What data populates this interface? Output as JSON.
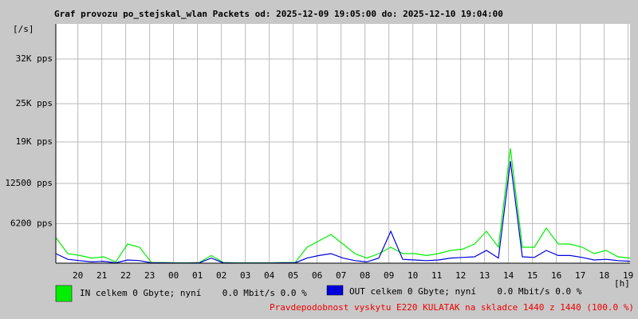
{
  "chart_data": {
    "type": "line",
    "title": "Graf provozu po_stejskal_wlan Packets od: 2025-12-09 19:05:00 do: 2025-12-10 19:04:00",
    "ylabel": "[/s]",
    "xlabel": "[h]",
    "x": [
      0,
      0.5,
      1,
      1.5,
      2,
      2.5,
      3,
      3.5,
      4,
      4.5,
      5,
      5.5,
      6,
      6.5,
      7,
      7.5,
      8,
      8.5,
      9,
      9.5,
      10,
      10.5,
      11,
      11.5,
      12,
      12.5,
      13,
      13.5,
      14,
      14.5,
      15,
      15.5,
      16,
      16.5,
      17,
      17.5,
      18,
      18.5,
      19,
      19.5,
      20,
      20.5,
      21,
      21.5,
      22,
      22.5,
      23,
      23.5,
      24
    ],
    "series": [
      {
        "name": "IN celkem 0 Gbyte; nyní    0.0 Mbit/s 0.0 %",
        "color": "#00ee00",
        "values": [
          4000,
          1500,
          1200,
          800,
          1000,
          200,
          3000,
          2500,
          100,
          100,
          50,
          50,
          100,
          1200,
          100,
          50,
          50,
          50,
          50,
          100,
          100,
          2500,
          3500,
          4500,
          3000,
          1500,
          800,
          1500,
          2500,
          1500,
          1500,
          1200,
          1500,
          2000,
          2200,
          3000,
          5000,
          2500,
          18000,
          2500,
          2500,
          5500,
          3000,
          3000,
          2500,
          1500,
          2000,
          1000,
          800
        ]
      },
      {
        "name": "OUT celkem 0 Gbyte; nyní    0.0 Mbit/s 0.0 %",
        "color": "#0000dd",
        "values": [
          1500,
          600,
          400,
          200,
          300,
          50,
          500,
          400,
          50,
          50,
          20,
          20,
          50,
          800,
          50,
          20,
          20,
          20,
          20,
          50,
          50,
          800,
          1200,
          1500,
          800,
          400,
          200,
          800,
          5000,
          600,
          500,
          400,
          500,
          800,
          900,
          1000,
          2000,
          800,
          16000,
          1000,
          900,
          2000,
          1200,
          1200,
          900,
          500,
          600,
          400,
          300
        ]
      }
    ],
    "xlim": [
      0,
      24
    ],
    "xticks": [
      {
        "value": 0.92,
        "label": "20"
      },
      {
        "value": 1.92,
        "label": "21"
      },
      {
        "value": 2.92,
        "label": "22"
      },
      {
        "value": 3.92,
        "label": "23"
      },
      {
        "value": 4.92,
        "label": "00"
      },
      {
        "value": 5.92,
        "label": "01"
      },
      {
        "value": 6.92,
        "label": "02"
      },
      {
        "value": 7.92,
        "label": "03"
      },
      {
        "value": 8.92,
        "label": "04"
      },
      {
        "value": 9.92,
        "label": "05"
      },
      {
        "value": 10.92,
        "label": "06"
      },
      {
        "value": 11.92,
        "label": "07"
      },
      {
        "value": 12.92,
        "label": "08"
      },
      {
        "value": 13.92,
        "label": "09"
      },
      {
        "value": 14.92,
        "label": "10"
      },
      {
        "value": 15.92,
        "label": "11"
      },
      {
        "value": 16.92,
        "label": "12"
      },
      {
        "value": 17.92,
        "label": "13"
      },
      {
        "value": 18.92,
        "label": "14"
      },
      {
        "value": 19.92,
        "label": "15"
      },
      {
        "value": 20.92,
        "label": "16"
      },
      {
        "value": 21.92,
        "label": "17"
      },
      {
        "value": 22.92,
        "label": "18"
      },
      {
        "value": 23.92,
        "label": "19"
      }
    ],
    "ylim": [
      0,
      37500
    ],
    "yticks": [
      {
        "value": 6200,
        "label": "6200 pps"
      },
      {
        "value": 12500,
        "label": "12500 pps"
      },
      {
        "value": 19000,
        "label": "19K pps"
      },
      {
        "value": 25000,
        "label": "25K pps"
      },
      {
        "value": 32000,
        "label": "32K pps"
      }
    ],
    "grid": true,
    "footer": "Pravdepodobnost vyskytu E220 KULATAK na skladce 1440 z 1440 (100.0 %)"
  }
}
